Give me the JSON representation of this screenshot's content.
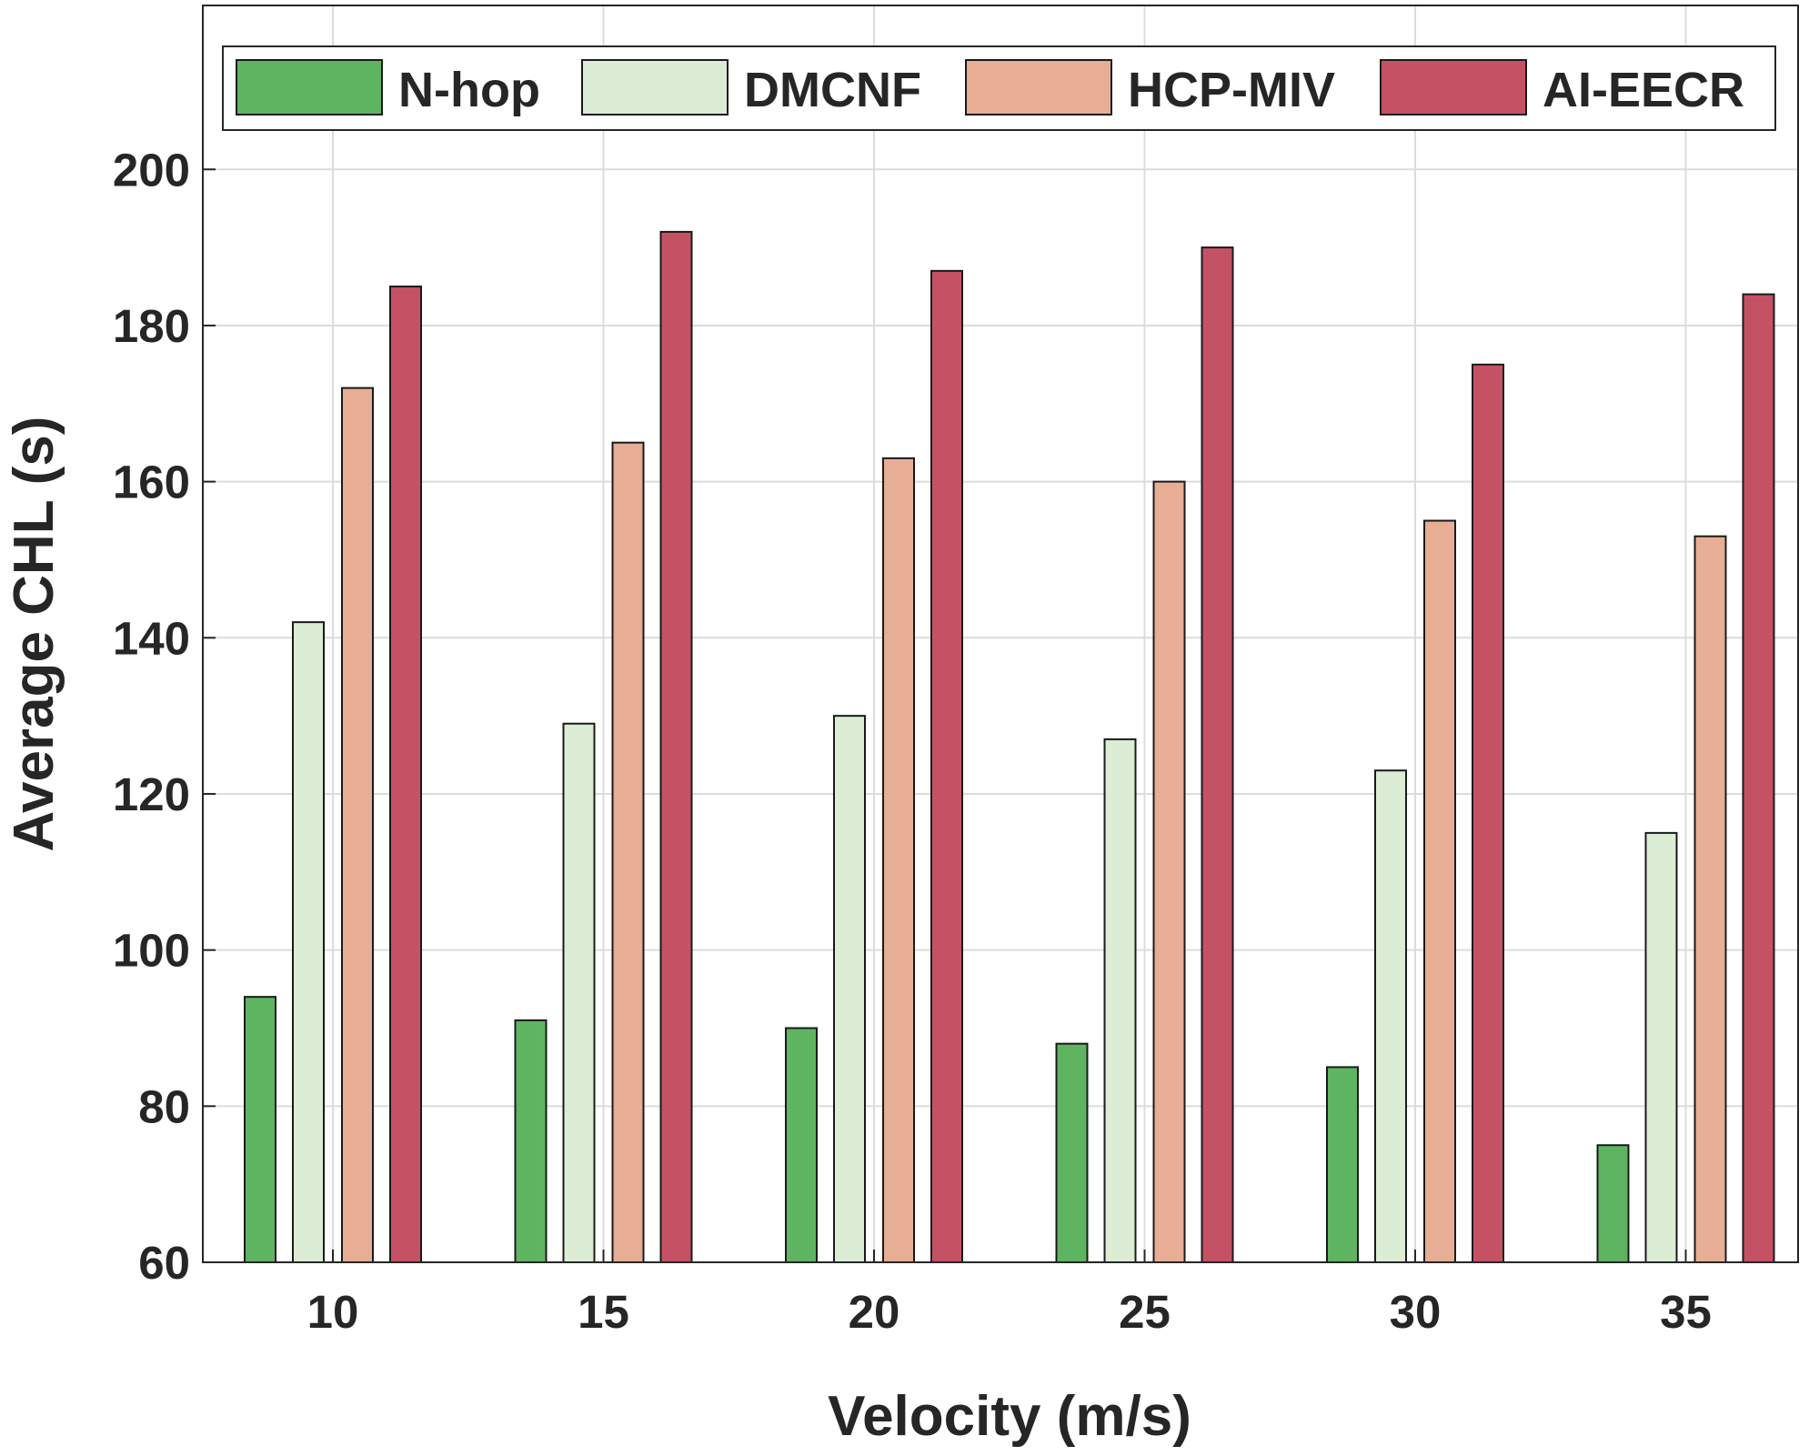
{
  "chart_data": {
    "type": "bar",
    "title": "",
    "xlabel": "Velocity (m/s)",
    "ylabel": "Average CHL (s)",
    "categories": [
      "10",
      "15",
      "20",
      "25",
      "30",
      "35"
    ],
    "ylim": [
      60,
      221
    ],
    "yticks": [
      "60",
      "80",
      "100",
      "120",
      "140",
      "160",
      "180",
      "200"
    ],
    "grid": true,
    "legend_placement": "top",
    "series": [
      {
        "name": "N-hop",
        "color": "#5fb462",
        "values": [
          94,
          91,
          90,
          88,
          85,
          75
        ]
      },
      {
        "name": "DMCNF",
        "color": "#dcecd5",
        "values": [
          142,
          129,
          130,
          127,
          123,
          115
        ]
      },
      {
        "name": "HCP-MIV",
        "color": "#e7ad95",
        "values": [
          172,
          165,
          163,
          160,
          155,
          153
        ]
      },
      {
        "name": "AI-EECR",
        "color": "#c45264",
        "values": [
          185,
          192,
          187,
          190,
          175,
          184
        ]
      }
    ]
  }
}
